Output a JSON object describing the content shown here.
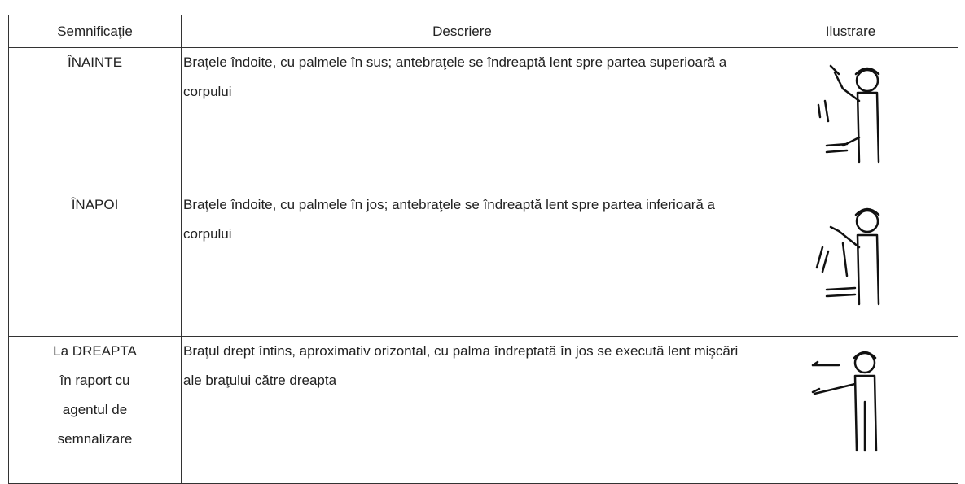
{
  "table": {
    "headers": [
      "Semnificaţie",
      "Descriere",
      "Ilustrare"
    ],
    "rows": [
      [
        "ÎNAINTE",
        "Braţele îndoite, cu palmele în sus; antebraţele se îndreaptă lent spre partea superioară a corpului"
      ],
      [
        "ÎNAPOI",
        "Braţele îndoite, cu palmele în jos; antebraţele se îndreaptă lent spre partea inferioară a corpului"
      ],
      [
        "La DREAPTA în raport cu agentul de semnalizare",
        "Braţul drept întins, aproximativ orizontal, cu palma îndreptată în jos se execută lent mişcări ale braţului către dreapta"
      ]
    ]
  }
}
